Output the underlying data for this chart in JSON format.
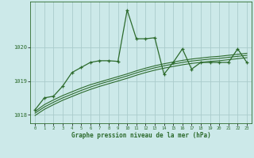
{
  "xlabel": "Graphe pression niveau de la mer (hPa)",
  "bg_color": "#cce9e9",
  "grid_color": "#aacccc",
  "line_color": "#2d6b2d",
  "xlim": [
    -0.5,
    23.5
  ],
  "ylim": [
    1017.75,
    1021.35
  ],
  "yticks": [
    1018,
    1019,
    1020
  ],
  "xticks": [
    0,
    1,
    2,
    3,
    4,
    5,
    6,
    7,
    8,
    9,
    10,
    11,
    12,
    13,
    14,
    15,
    16,
    17,
    18,
    19,
    20,
    21,
    22,
    23
  ],
  "main_series": [
    1018.15,
    1018.5,
    1018.55,
    1018.85,
    1019.25,
    1019.4,
    1019.55,
    1019.6,
    1019.6,
    1019.58,
    1021.1,
    1020.25,
    1020.25,
    1020.28,
    1019.2,
    1019.55,
    1019.95,
    1019.35,
    1019.55,
    1019.55,
    1019.55,
    1019.55,
    1019.95,
    1019.55
  ],
  "smooth1": [
    1018.1,
    1018.3,
    1018.44,
    1018.57,
    1018.68,
    1018.79,
    1018.89,
    1018.97,
    1019.05,
    1019.13,
    1019.21,
    1019.3,
    1019.38,
    1019.45,
    1019.51,
    1019.56,
    1019.61,
    1019.65,
    1019.68,
    1019.71,
    1019.73,
    1019.76,
    1019.79,
    1019.82
  ],
  "smooth2": [
    1018.05,
    1018.23,
    1018.37,
    1018.5,
    1018.61,
    1018.72,
    1018.82,
    1018.91,
    1018.99,
    1019.07,
    1019.15,
    1019.24,
    1019.32,
    1019.39,
    1019.45,
    1019.5,
    1019.55,
    1019.59,
    1019.62,
    1019.65,
    1019.67,
    1019.7,
    1019.73,
    1019.76
  ],
  "smooth3": [
    1017.98,
    1018.16,
    1018.3,
    1018.43,
    1018.54,
    1018.65,
    1018.75,
    1018.84,
    1018.92,
    1019.0,
    1019.08,
    1019.17,
    1019.25,
    1019.32,
    1019.38,
    1019.43,
    1019.48,
    1019.52,
    1019.55,
    1019.58,
    1019.6,
    1019.63,
    1019.66,
    1019.69
  ]
}
